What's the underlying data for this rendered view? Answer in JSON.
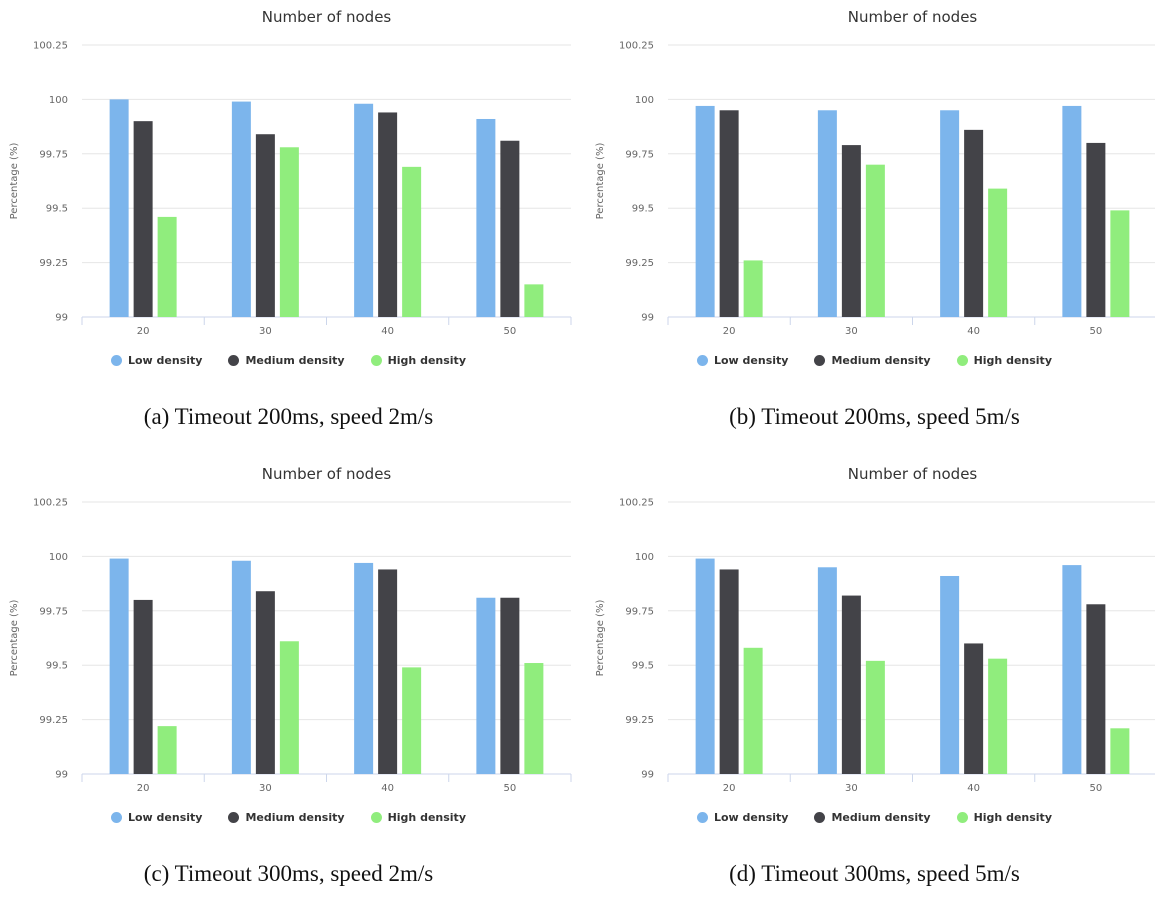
{
  "chart_data": [
    {
      "type": "bar",
      "title": "Number of nodes",
      "caption": "(a) Timeout 200ms, speed 2m/s",
      "ylabel": "Percentage (%)",
      "xlabel": "",
      "ylim": [
        99,
        100.25
      ],
      "yticks": [
        "99",
        "99.25",
        "99.5",
        "99.75",
        "100",
        "100.25"
      ],
      "categories": [
        "20",
        "30",
        "40",
        "50"
      ],
      "series": [
        {
          "name": "Low density",
          "color": "#7cb5ec",
          "values": [
            100.0,
            99.99,
            99.98,
            99.91
          ]
        },
        {
          "name": "Medium density",
          "color": "#434348",
          "values": [
            99.9,
            99.84,
            99.94,
            99.81
          ]
        },
        {
          "name": "High density",
          "color": "#90ed7d",
          "values": [
            99.46,
            99.78,
            99.69,
            99.15
          ]
        }
      ],
      "legend": "bottom-center",
      "grid": true
    },
    {
      "type": "bar",
      "title": "Number of nodes",
      "caption": "(b) Timeout 200ms, speed 5m/s",
      "ylabel": "Percentage (%)",
      "xlabel": "",
      "ylim": [
        99,
        100.25
      ],
      "yticks": [
        "99",
        "99.25",
        "99.5",
        "99.75",
        "100",
        "100.25"
      ],
      "categories": [
        "20",
        "30",
        "40",
        "50"
      ],
      "series": [
        {
          "name": "Low density",
          "color": "#7cb5ec",
          "values": [
            99.97,
            99.95,
            99.95,
            99.97
          ]
        },
        {
          "name": "Medium density",
          "color": "#434348",
          "values": [
            99.95,
            99.79,
            99.86,
            99.8
          ]
        },
        {
          "name": "High density",
          "color": "#90ed7d",
          "values": [
            99.26,
            99.7,
            99.59,
            99.49
          ]
        }
      ],
      "legend": "bottom-center",
      "grid": true
    },
    {
      "type": "bar",
      "title": "Number of nodes",
      "caption": "(c) Timeout 300ms, speed 2m/s",
      "ylabel": "Percentage (%)",
      "xlabel": "",
      "ylim": [
        99,
        100.25
      ],
      "yticks": [
        "99",
        "99.25",
        "99.5",
        "99.75",
        "100",
        "100.25"
      ],
      "categories": [
        "20",
        "30",
        "40",
        "50"
      ],
      "series": [
        {
          "name": "Low density",
          "color": "#7cb5ec",
          "values": [
            99.99,
            99.98,
            99.97,
            99.81
          ]
        },
        {
          "name": "Medium density",
          "color": "#434348",
          "values": [
            99.8,
            99.84,
            99.94,
            99.81
          ]
        },
        {
          "name": "High density",
          "color": "#90ed7d",
          "values": [
            99.22,
            99.61,
            99.49,
            99.51
          ]
        }
      ],
      "legend": "bottom-center",
      "grid": true
    },
    {
      "type": "bar",
      "title": "Number of nodes",
      "caption": "(d) Timeout 300ms, speed 5m/s",
      "ylabel": "Percentage (%)",
      "xlabel": "",
      "ylim": [
        99,
        100.25
      ],
      "yticks": [
        "99",
        "99.25",
        "99.5",
        "99.75",
        "100",
        "100.25"
      ],
      "categories": [
        "20",
        "30",
        "40",
        "50"
      ],
      "series": [
        {
          "name": "Low density",
          "color": "#7cb5ec",
          "values": [
            99.99,
            99.95,
            99.91,
            99.96
          ]
        },
        {
          "name": "Medium density",
          "color": "#434348",
          "values": [
            99.94,
            99.82,
            99.6,
            99.78
          ]
        },
        {
          "name": "High density",
          "color": "#90ed7d",
          "values": [
            99.58,
            99.52,
            99.53,
            99.21
          ]
        }
      ],
      "legend": "bottom-center",
      "grid": true
    }
  ]
}
